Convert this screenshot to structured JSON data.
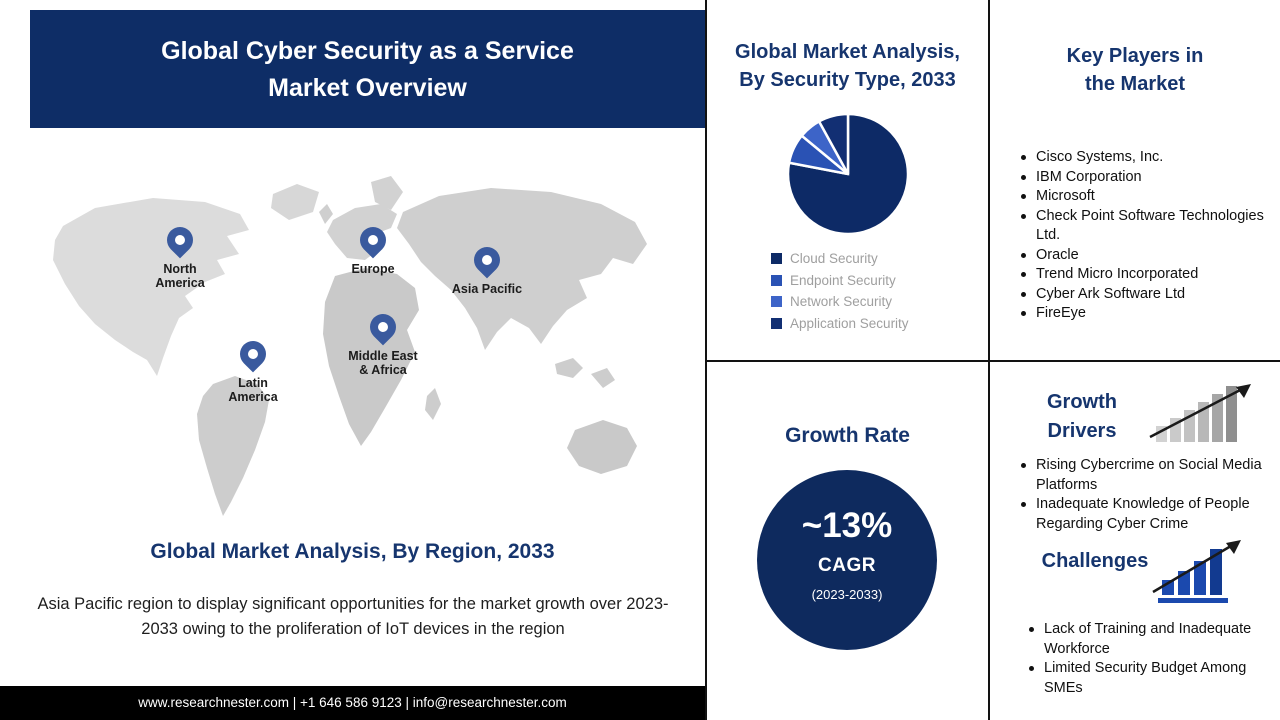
{
  "colors": {
    "navy": "#0e2d66",
    "heading_navy": "#16356e",
    "pin_blue": "#3a5a9e",
    "map_gray": "#d2d2d2",
    "legend_text_gray": "#9f9f9f",
    "footer_bg": "#000000"
  },
  "header": {
    "line1": "Global Cyber Security as a Service",
    "line2": "Market Overview"
  },
  "map": {
    "pins": [
      {
        "label": "North America"
      },
      {
        "label": "Europe"
      },
      {
        "label": "Asia Pacific"
      },
      {
        "label": "Middle East & Africa"
      },
      {
        "label": "Latin America"
      }
    ]
  },
  "region": {
    "title": "Global Market Analysis, By Region, 2033",
    "description": "Asia Pacific region to display significant opportunities for the market growth over 2023-2033 owing to the proliferation of IoT devices in the region"
  },
  "footer": {
    "text": "www.researchnester.com | +1 646 586 9123 | info@researchnester.com"
  },
  "security_type": {
    "title_line1": "Global Market Analysis,",
    "title_line2": "By Security Type, 2033",
    "legend": [
      {
        "label": "Cloud Security",
        "color": "#0d2a66"
      },
      {
        "label": "Endpoint Security",
        "color": "#2a52b4"
      },
      {
        "label": "Network Security",
        "color": "#3d64c8"
      },
      {
        "label": "Application Security",
        "color": "#122f73"
      }
    ]
  },
  "chart_data": {
    "type": "pie",
    "title": "Global Market Analysis, By Security Type, 2033",
    "labels": [
      "Cloud Security",
      "Endpoint Security",
      "Network Security",
      "Application Security"
    ],
    "values": [
      78,
      8,
      6,
      8
    ],
    "colors": [
      "#0d2a66",
      "#2a52b4",
      "#3d64c8",
      "#122f73"
    ],
    "start_angle_deg": -90,
    "legend_position": "bottom-left"
  },
  "growth_rate": {
    "title": "Growth Rate",
    "value": "~13%",
    "metric": "CAGR",
    "period": "(2023-2033)"
  },
  "key_players": {
    "title": "Key Players in the Market",
    "items": [
      "Cisco Systems, Inc.",
      "IBM Corporation",
      "Microsoft",
      "Check Point Software Technologies Ltd.",
      "Oracle",
      "Trend Micro Incorporated",
      "Cyber Ark Software Ltd",
      "FireEye"
    ]
  },
  "growth_drivers": {
    "title": "Growth Drivers",
    "items": [
      "Rising Cybercrime on Social Media Platforms",
      "Inadequate Knowledge of People Regarding Cyber Crime"
    ]
  },
  "challenges": {
    "title": "Challenges",
    "items": [
      "Lack of Training and Inadequate Workforce",
      "Limited Security Budget Among SMEs"
    ]
  }
}
